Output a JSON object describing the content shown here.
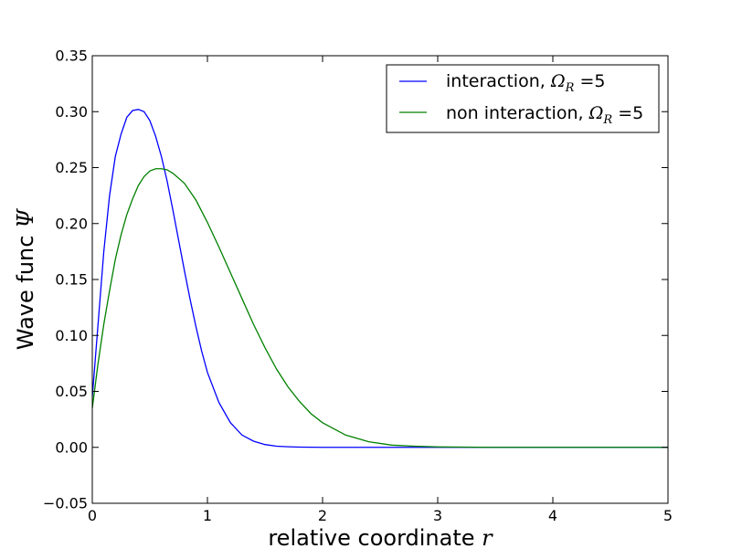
{
  "chart_data": {
    "type": "line",
    "xlabel": "relative coordinate",
    "xlabel_symbol": "r",
    "ylabel": "Wave func",
    "ylabel_symbol": "Ψ",
    "xlim": [
      0,
      5
    ],
    "ylim": [
      -0.05,
      0.35
    ],
    "xticks": [
      0,
      1,
      2,
      3,
      4,
      5
    ],
    "xtick_labels": [
      "0",
      "1",
      "2",
      "3",
      "4",
      "5"
    ],
    "yticks": [
      -0.05,
      0.0,
      0.05,
      0.1,
      0.15,
      0.2,
      0.25,
      0.3,
      0.35
    ],
    "ytick_labels": [
      "−0.05",
      "0.00",
      "0.05",
      "0.10",
      "0.15",
      "0.20",
      "0.25",
      "0.30",
      "0.35"
    ],
    "grid": false,
    "legend_placement": "top-right",
    "series": [
      {
        "name": "interaction, Ω_R = 5",
        "legend_text": "interaction, ",
        "legend_math": "Ω",
        "legend_sub": "R",
        "legend_eq": " =5",
        "color": "#0000ff",
        "x": [
          0.0,
          0.05,
          0.1,
          0.15,
          0.2,
          0.25,
          0.3,
          0.35,
          0.4,
          0.45,
          0.5,
          0.55,
          0.6,
          0.65,
          0.7,
          0.75,
          0.8,
          0.85,
          0.9,
          0.95,
          1.0,
          1.1,
          1.2,
          1.3,
          1.4,
          1.5,
          1.6,
          1.7,
          1.8,
          2.0,
          2.2,
          2.5,
          3.0,
          4.0,
          5.0
        ],
        "y": [
          0.045,
          0.11,
          0.175,
          0.225,
          0.26,
          0.28,
          0.295,
          0.301,
          0.302,
          0.3,
          0.292,
          0.278,
          0.26,
          0.238,
          0.212,
          0.185,
          0.158,
          0.132,
          0.108,
          0.086,
          0.067,
          0.04,
          0.022,
          0.011,
          0.0055,
          0.0025,
          0.001,
          0.0005,
          0.0002,
          0.0,
          0.0,
          0.0,
          0.0,
          0.0,
          0.0
        ]
      },
      {
        "name": "non interaction, Ω_R = 5",
        "legend_text": "non interaction, ",
        "legend_math": "Ω",
        "legend_sub": "R",
        "legend_eq": " =5",
        "color": "#008000",
        "x": [
          0.0,
          0.05,
          0.1,
          0.15,
          0.2,
          0.25,
          0.3,
          0.35,
          0.4,
          0.45,
          0.5,
          0.55,
          0.6,
          0.65,
          0.7,
          0.8,
          0.9,
          1.0,
          1.1,
          1.2,
          1.3,
          1.4,
          1.5,
          1.6,
          1.7,
          1.8,
          1.9,
          2.0,
          2.2,
          2.4,
          2.6,
          2.8,
          3.0,
          3.5,
          4.0,
          5.0
        ],
        "y": [
          0.035,
          0.075,
          0.11,
          0.14,
          0.168,
          0.19,
          0.208,
          0.222,
          0.234,
          0.242,
          0.247,
          0.249,
          0.249,
          0.248,
          0.245,
          0.236,
          0.221,
          0.201,
          0.179,
          0.156,
          0.133,
          0.11,
          0.089,
          0.07,
          0.054,
          0.041,
          0.03,
          0.022,
          0.011,
          0.005,
          0.002,
          0.001,
          0.0004,
          0.0,
          0.0,
          0.0
        ]
      }
    ]
  }
}
